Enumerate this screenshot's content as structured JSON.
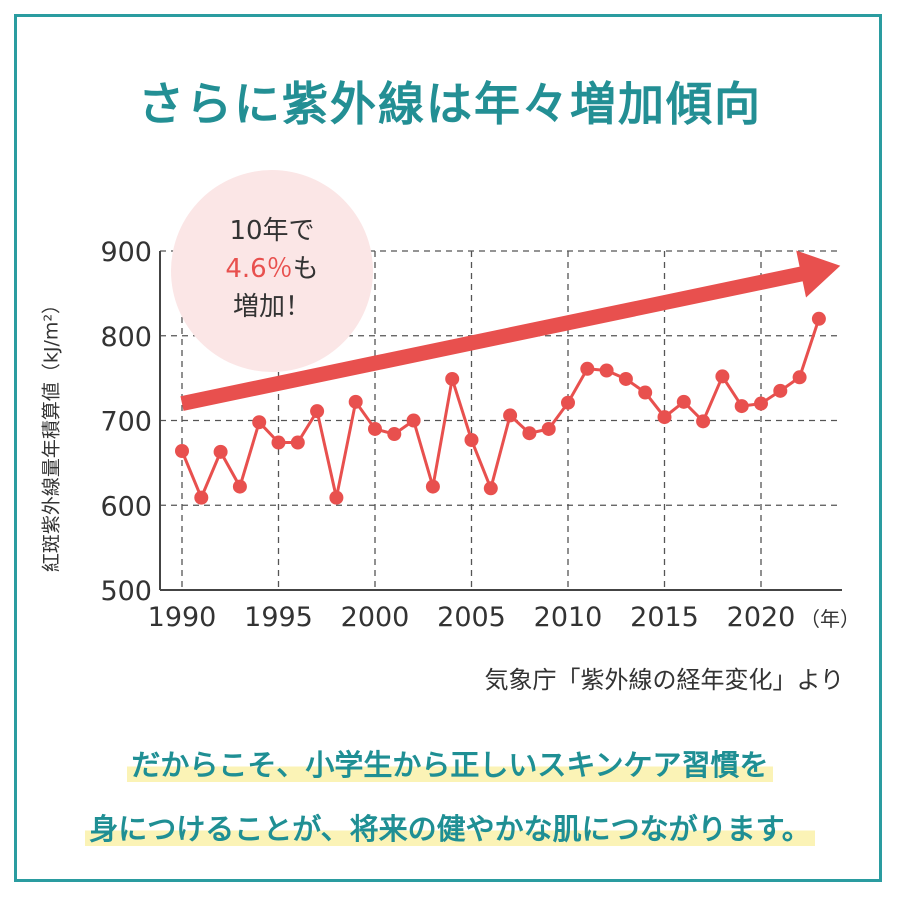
{
  "title": "さらに紫外線は年々増加傾向",
  "badge": {
    "line1": "10年で",
    "highlight": "4.6％",
    "line2_suffix": "も",
    "line3": "増加！"
  },
  "source": "気象庁「紫外線の経年変化」より",
  "message": {
    "line1": "だからこそ、小学生から正しいスキンケア習慣を",
    "line2": "身につけることが、将来の健やかな肌につながります。"
  },
  "colors": {
    "accent": "#e8504e",
    "title": "#238f94",
    "frame": "#2a9ca0",
    "badge_bg": "#fbe6e6",
    "highlight": "#fbf3b6"
  },
  "chart_data": {
    "type": "line",
    "ylabel": "紅斑紫外線量年積算値（kJ/m²）",
    "xlabel_unit": "（年）",
    "ylim": [
      500,
      900
    ],
    "yticks": [
      500,
      600,
      700,
      800,
      900
    ],
    "xlim": [
      1990,
      2023
    ],
    "xticks": [
      1990,
      1995,
      2000,
      2005,
      2010,
      2015,
      2020
    ],
    "grid": true,
    "series": [
      {
        "x": [
          1990,
          1991,
          1992,
          1993,
          1994,
          1995,
          1996,
          1997,
          1998,
          1999,
          2000,
          2001,
          2002,
          2003,
          2004,
          2005,
          2006,
          2007,
          2008,
          2009,
          2010,
          2011,
          2012,
          2013,
          2014,
          2015,
          2016,
          2017,
          2018,
          2019,
          2020,
          2021,
          2022,
          2023
        ],
        "values": [
          664,
          609,
          663,
          622,
          698,
          674,
          674,
          711,
          609,
          722,
          690,
          684,
          700,
          622,
          749,
          677,
          620,
          706,
          685,
          690,
          721,
          761,
          759,
          749,
          733,
          704,
          722,
          699,
          752,
          717,
          720,
          735,
          751,
          820
        ]
      }
    ],
    "trend": {
      "x": [
        1990,
        2023
      ],
      "values": [
        720,
        880
      ]
    }
  }
}
